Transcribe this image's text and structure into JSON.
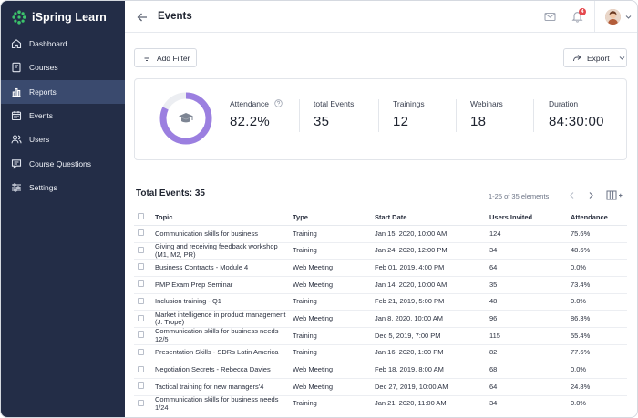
{
  "app": {
    "name": "iSpring Learn"
  },
  "sidebar": {
    "items": [
      {
        "label": "Dashboard",
        "icon": "home-icon",
        "active": false
      },
      {
        "label": "Courses",
        "icon": "book-icon",
        "active": false
      },
      {
        "label": "Reports",
        "icon": "bar-chart-icon",
        "active": true
      },
      {
        "label": "Events",
        "icon": "calendar-icon",
        "active": false
      },
      {
        "label": "Users",
        "icon": "users-icon",
        "active": false
      },
      {
        "label": "Course Questions",
        "icon": "chat-icon",
        "active": false
      },
      {
        "label": "Settings",
        "icon": "sliders-icon",
        "active": false
      }
    ]
  },
  "header": {
    "title": "Events",
    "notifications_count": "4"
  },
  "toolbar": {
    "add_filter": "Add Filter",
    "export": "Export"
  },
  "stats": {
    "attendance_label": "Attendance",
    "attendance_value": "82.2%",
    "attendance_fraction": 0.822,
    "total_events_label": "total Events",
    "total_events_value": "35",
    "trainings_label": "Trainings",
    "trainings_value": "12",
    "webinars_label": "Webinars",
    "webinars_value": "18",
    "duration_label": "Duration",
    "duration_value": "84:30:00"
  },
  "table": {
    "title": "Total Events: 35",
    "range": "1-25 of 35 elements",
    "columns": [
      "Topic",
      "Type",
      "Start Date",
      "Users Invited",
      "Attendance"
    ],
    "rows": [
      [
        "Communication skills for business",
        "Training",
        "Jan 15, 2020, 10:00 AM",
        "124",
        "75.6%"
      ],
      [
        "Giving and receiving feedback workshop (M1, M2, PR)",
        "Training",
        "Jan 24, 2020, 12:00 PM",
        "34",
        "48.6%"
      ],
      [
        "Business Contracts - Module 4",
        "Web Meeting",
        "Feb 01, 2019, 4:00 PM",
        "64",
        "0.0%"
      ],
      [
        "PMP Exam Prep Seminar",
        "Web Meeting",
        "Jan 14, 2020, 10:00 AM",
        "35",
        "73.4%"
      ],
      [
        "Inclusion training - Q1",
        "Training",
        "Feb 21, 2019, 5:00 PM",
        "48",
        "0.0%"
      ],
      [
        "Market intelligence in product management (J. Trope)",
        "Web Meeting",
        "Jan 8, 2020, 10:00 AM",
        "96",
        "86.3%"
      ],
      [
        "Communication skills for business needs 12/5",
        "Training",
        "Dec 5, 2019, 7:00 PM",
        "115",
        "55.4%"
      ],
      [
        "Presentation Skills - SDRs Latin America",
        "Training",
        "Jan 16, 2020, 1:00 PM",
        "82",
        "77.6%"
      ],
      [
        "Negotiation Secrets - Rebecca Davies",
        "Web Meeting",
        "Feb 18, 2019, 8:00 AM",
        "68",
        "0.0%"
      ],
      [
        "Tactical training for new managers'4",
        "Web Meeting",
        "Dec 27, 2019, 10:00 AM",
        "64",
        "24.8%"
      ],
      [
        "Communication skills for business needs 1/24",
        "Training",
        "Jan 21, 2020, 11:00 AM",
        "34",
        "0.0%"
      ]
    ]
  },
  "colors": {
    "sidebar": "#232d47",
    "sidebar_active": "#3a4a6e",
    "accent": "#9b7fe0",
    "donut_track": "#eceef2"
  }
}
